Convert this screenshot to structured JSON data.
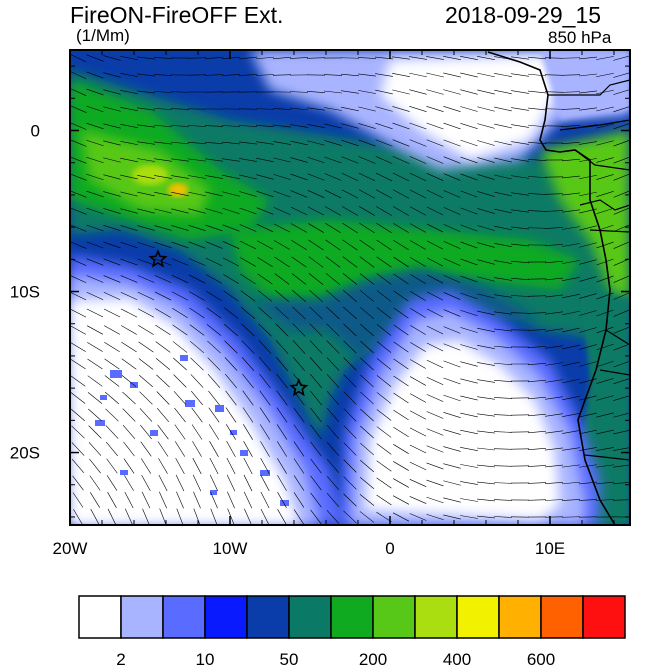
{
  "header": {
    "title": "FireON-FireOFF Ext.",
    "units": "(1/Mm)",
    "datetime": "2018-09-29_15",
    "level": "850 hPa"
  },
  "map": {
    "lon_range": [
      -20,
      15
    ],
    "lat_range": [
      -24.5,
      5
    ],
    "x_ticks": [
      {
        "lon": -20,
        "label": "20W"
      },
      {
        "lon": -10,
        "label": "10W"
      },
      {
        "lon": 0,
        "label": "0"
      },
      {
        "lon": 10,
        "label": "10E"
      }
    ],
    "y_ticks": [
      {
        "lat": 0,
        "label": "0"
      },
      {
        "lat": -10,
        "label": "10S"
      },
      {
        "lat": -20,
        "label": "20S"
      }
    ],
    "markers": [
      {
        "name": "star-marker",
        "lon": -14.5,
        "lat": -8
      },
      {
        "name": "star-marker",
        "lon": -5.7,
        "lat": -16
      }
    ],
    "wind_field": "wind-barbs"
  },
  "colorbar": {
    "colors": [
      "#ffffff",
      "#a8b4ff",
      "#5a6cff",
      "#0a1aff",
      "#0a3caa",
      "#0a7a66",
      "#10aa20",
      "#58c818",
      "#aade10",
      "#f2f200",
      "#ffb000",
      "#ff6000",
      "#ff1010"
    ],
    "labels": [
      {
        "boundary": 1,
        "label": "2"
      },
      {
        "boundary": 3,
        "label": "10"
      },
      {
        "boundary": 5,
        "label": "50"
      },
      {
        "boundary": 7,
        "label": "200"
      },
      {
        "boundary": 9,
        "label": "400"
      },
      {
        "boundary": 11,
        "label": "600"
      }
    ]
  }
}
